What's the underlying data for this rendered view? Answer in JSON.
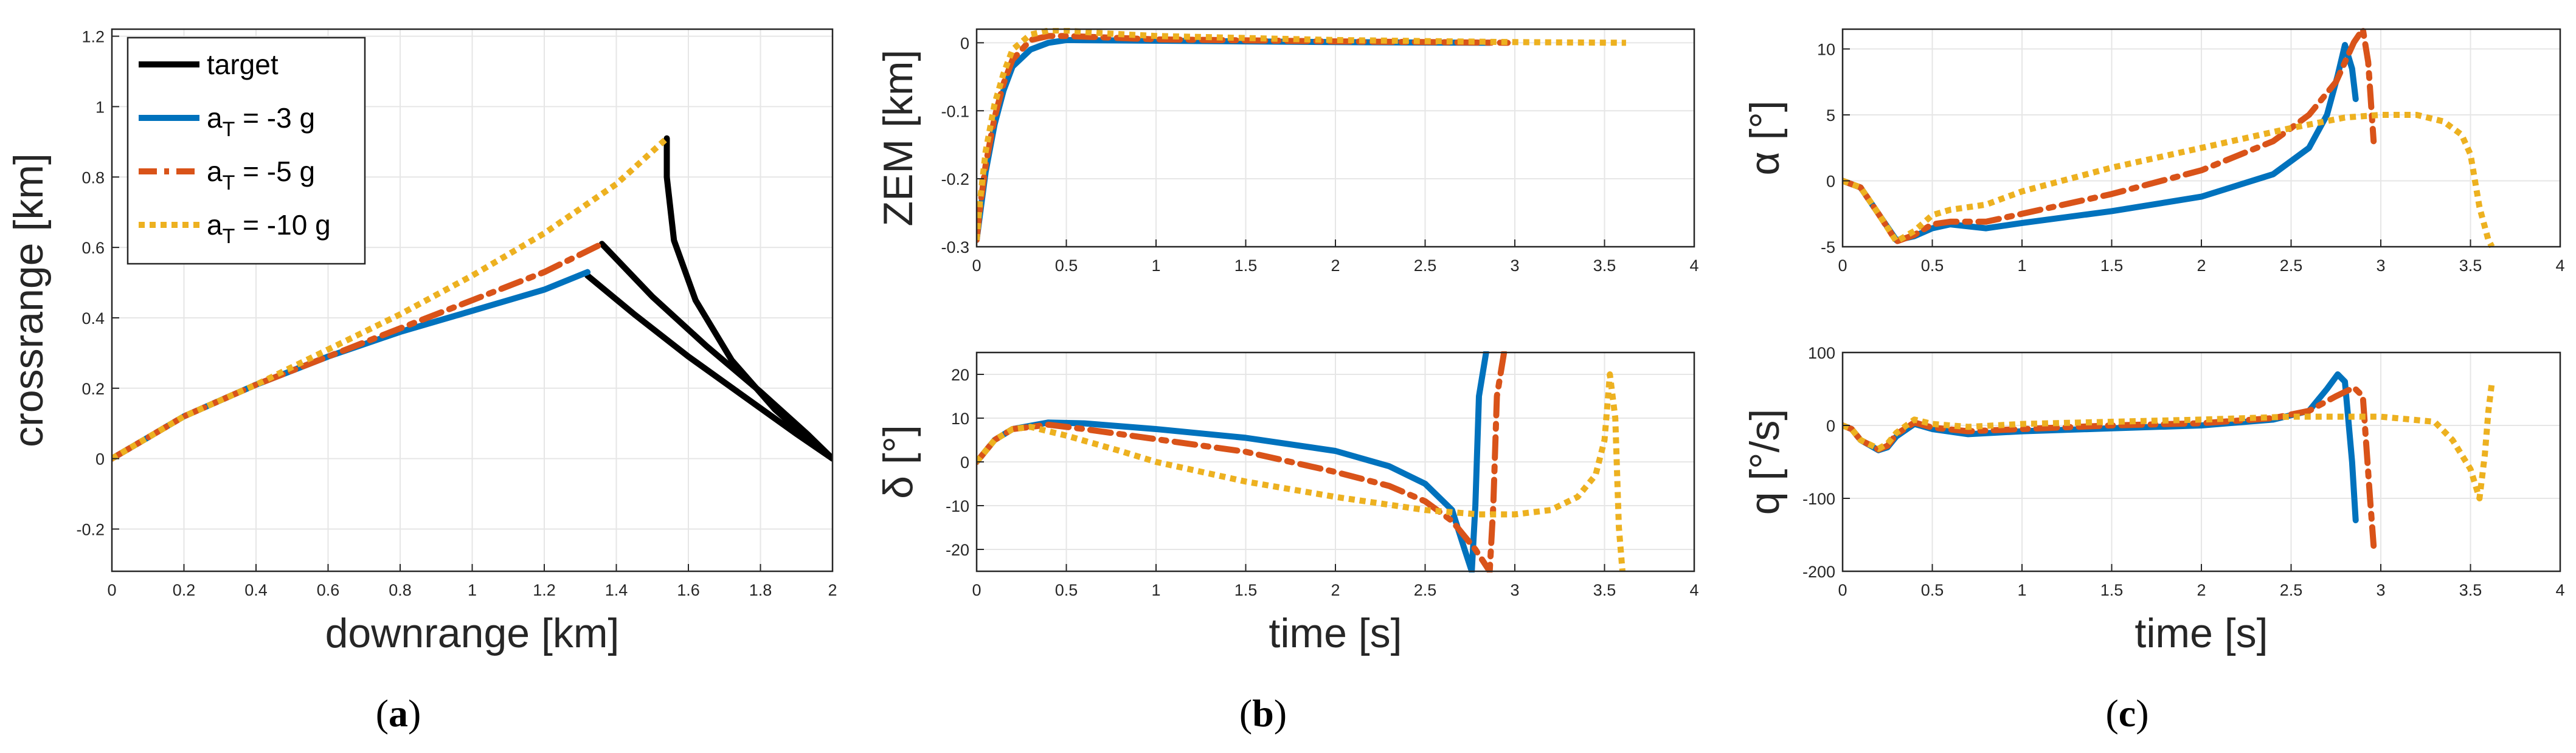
{
  "colors": {
    "target": "#000000",
    "a3": "#0072BD",
    "a5": "#D95319",
    "a10": "#EDB120",
    "grid": "#e6e6e6",
    "axis": "#262626"
  },
  "panel_labels": [
    "a",
    "b",
    "c"
  ],
  "legend": [
    {
      "series": "target",
      "main": "target",
      "sub": ""
    },
    {
      "series": "a3",
      "main": "a",
      "sub": "T",
      "rest": " = -3 g"
    },
    {
      "series": "a5",
      "main": "a",
      "sub": "T",
      "rest": " = -5 g"
    },
    {
      "series": "a10",
      "main": "a",
      "sub": "T",
      "rest": " = -10 g"
    }
  ],
  "chart_data": [
    {
      "id": "traj",
      "type": "line",
      "xlabel": "downrange [km]",
      "ylabel": "crossrange [km]",
      "xlim": [
        0,
        2
      ],
      "ylim": [
        -0.32,
        1.22
      ],
      "xticks": [
        0,
        0.2,
        0.4,
        0.6,
        0.8,
        1,
        1.2,
        1.4,
        1.6,
        1.8,
        2
      ],
      "yticks": [
        -0.2,
        0,
        0.2,
        0.4,
        0.6,
        0.8,
        1,
        1.2
      ],
      "series": [
        {
          "name": "target",
          "key": "target",
          "style": "solid",
          "x": [
            1.32,
            1.45,
            1.6,
            1.75,
            1.9,
            2.0
          ],
          "y": [
            0.52,
            0.41,
            0.29,
            0.18,
            0.07,
            0.0
          ]
        },
        {
          "name": "target",
          "key": "target",
          "style": "solid",
          "x": [
            1.36,
            1.5,
            1.65,
            1.8,
            1.93,
            2.0
          ],
          "y": [
            0.61,
            0.46,
            0.32,
            0.19,
            0.07,
            0.0
          ]
        },
        {
          "name": "target",
          "key": "target",
          "style": "solid",
          "x": [
            1.54,
            1.54,
            1.56,
            1.62,
            1.72,
            1.84,
            1.95,
            2.0
          ],
          "y": [
            0.91,
            0.8,
            0.62,
            0.45,
            0.28,
            0.14,
            0.04,
            0.0
          ]
        },
        {
          "name": "a_T = -3 g",
          "key": "a3",
          "style": "solid",
          "x": [
            0,
            0.1,
            0.2,
            0.4,
            0.6,
            0.8,
            1.0,
            1.2,
            1.32
          ],
          "y": [
            0,
            0.06,
            0.12,
            0.21,
            0.29,
            0.36,
            0.42,
            0.48,
            0.53
          ]
        },
        {
          "name": "a_T = -5 g",
          "key": "a5",
          "style": "dashdot",
          "x": [
            0,
            0.1,
            0.2,
            0.4,
            0.6,
            0.8,
            1.0,
            1.2,
            1.36
          ],
          "y": [
            0,
            0.06,
            0.12,
            0.21,
            0.29,
            0.37,
            0.45,
            0.53,
            0.61
          ]
        },
        {
          "name": "a_T = -10 g",
          "key": "a10",
          "style": "dotted",
          "x": [
            0,
            0.1,
            0.2,
            0.4,
            0.6,
            0.8,
            1.0,
            1.2,
            1.4,
            1.54
          ],
          "y": [
            0,
            0.06,
            0.12,
            0.21,
            0.31,
            0.41,
            0.52,
            0.64,
            0.78,
            0.91
          ]
        }
      ]
    },
    {
      "id": "zem",
      "type": "line",
      "xlabel": "",
      "ylabel": "ZEM [km]",
      "xlim": [
        0,
        4
      ],
      "ylim": [
        -0.3,
        0.02
      ],
      "xticks": [
        0,
        0.5,
        1,
        1.5,
        2,
        2.5,
        3,
        3.5,
        4
      ],
      "yticks": [
        -0.3,
        -0.2,
        -0.1,
        0
      ],
      "series": [
        {
          "name": "a_T = -3 g",
          "key": "a3",
          "style": "solid",
          "x": [
            0,
            0.02,
            0.05,
            0.1,
            0.15,
            0.2,
            0.3,
            0.4,
            0.5,
            1,
            2,
            2.86
          ],
          "y": [
            -0.29,
            -0.25,
            -0.19,
            -0.12,
            -0.07,
            -0.035,
            -0.01,
            0.0,
            0.004,
            0.003,
            0.001,
            0.0
          ]
        },
        {
          "name": "a_T = -5 g",
          "key": "a5",
          "style": "dashdot",
          "x": [
            0,
            0.02,
            0.05,
            0.1,
            0.15,
            0.2,
            0.3,
            0.4,
            0.5,
            1,
            2,
            2.96
          ],
          "y": [
            -0.29,
            -0.24,
            -0.18,
            -0.11,
            -0.06,
            -0.025,
            0.004,
            0.01,
            0.01,
            0.005,
            0.002,
            0.0
          ]
        },
        {
          "name": "a_T = -10 g",
          "key": "a10",
          "style": "dotted",
          "x": [
            0,
            0.02,
            0.05,
            0.1,
            0.15,
            0.2,
            0.3,
            0.4,
            0.5,
            0.7,
            1,
            2,
            3,
            3.62
          ],
          "y": [
            -0.29,
            -0.23,
            -0.16,
            -0.09,
            -0.045,
            -0.01,
            0.012,
            0.018,
            0.018,
            0.014,
            0.01,
            0.004,
            0.001,
            0.0
          ]
        }
      ]
    },
    {
      "id": "delta",
      "type": "line",
      "xlabel": "time [s]",
      "ylabel": "δ [°]",
      "xlim": [
        0,
        4
      ],
      "ylim": [
        -25,
        25
      ],
      "xticks": [
        0,
        0.5,
        1,
        1.5,
        2,
        2.5,
        3,
        3.5,
        4
      ],
      "yticks": [
        -20,
        -10,
        0,
        10,
        20
      ],
      "series": [
        {
          "name": "a_T = -3 g",
          "key": "a3",
          "style": "solid",
          "x": [
            0,
            0.1,
            0.2,
            0.4,
            0.6,
            1.0,
            1.5,
            2.0,
            2.3,
            2.5,
            2.65,
            2.72,
            2.76,
            2.78,
            2.8,
            2.84
          ],
          "y": [
            0,
            5,
            7.5,
            9,
            8.8,
            7.5,
            5.5,
            2.5,
            -1,
            -5,
            -11,
            -20,
            -25,
            -10,
            15,
            25
          ]
        },
        {
          "name": "a_T = -5 g",
          "key": "a5",
          "style": "dashdot",
          "x": [
            0,
            0.1,
            0.2,
            0.4,
            0.6,
            1.0,
            1.5,
            2.0,
            2.3,
            2.5,
            2.65,
            2.78,
            2.86,
            2.88,
            2.9,
            2.94
          ],
          "y": [
            0,
            5,
            7.5,
            8.5,
            7.5,
            5.2,
            2.3,
            -2.3,
            -5.5,
            -9,
            -13.5,
            -20,
            -25,
            -10,
            15,
            25
          ]
        },
        {
          "name": "a_T = -10 g",
          "key": "a10",
          "style": "dotted",
          "x": [
            0,
            0.1,
            0.2,
            0.3,
            0.5,
            0.8,
            1.0,
            1.5,
            2.0,
            2.5,
            2.8,
            3.0,
            3.2,
            3.35,
            3.45,
            3.5,
            3.53,
            3.56,
            3.58,
            3.6
          ],
          "y": [
            0,
            5,
            7.5,
            8,
            6,
            2.5,
            0,
            -4.5,
            -8,
            -11,
            -12,
            -12,
            -11,
            -8,
            -3,
            5,
            20,
            10,
            -15,
            -25
          ]
        }
      ]
    },
    {
      "id": "alpha",
      "type": "line",
      "xlabel": "",
      "ylabel": "α [°]",
      "xlim": [
        0,
        4
      ],
      "ylim": [
        -5,
        11.5
      ],
      "xticks": [
        0,
        0.5,
        1,
        1.5,
        2,
        2.5,
        3,
        3.5,
        4
      ],
      "yticks": [
        -5,
        0,
        5,
        10
      ],
      "series": [
        {
          "name": "a_T = -3 g",
          "key": "a3",
          "style": "solid",
          "x": [
            0,
            0.1,
            0.2,
            0.3,
            0.4,
            0.5,
            0.6,
            0.8,
            1.0,
            1.5,
            2.0,
            2.4,
            2.6,
            2.7,
            2.76,
            2.8,
            2.84,
            2.86
          ],
          "y": [
            0,
            -0.5,
            -2.5,
            -4.5,
            -4.2,
            -3.6,
            -3.3,
            -3.6,
            -3.2,
            -2.3,
            -1.2,
            0.5,
            2.5,
            5,
            8,
            10.3,
            8.5,
            6.2
          ]
        },
        {
          "name": "a_T = -5 g",
          "key": "a5",
          "style": "dashdot",
          "x": [
            0,
            0.1,
            0.2,
            0.3,
            0.4,
            0.5,
            0.6,
            0.8,
            1.0,
            1.5,
            2.0,
            2.4,
            2.6,
            2.75,
            2.85,
            2.9,
            2.93,
            2.96
          ],
          "y": [
            0,
            -0.5,
            -2.5,
            -4.6,
            -4.1,
            -3.3,
            -3.1,
            -3.1,
            -2.5,
            -1,
            0.8,
            3,
            5,
            7.5,
            10.5,
            11.5,
            9,
            3
          ]
        },
        {
          "name": "a_T = -10 g",
          "key": "a10",
          "style": "dotted",
          "x": [
            0,
            0.1,
            0.2,
            0.3,
            0.4,
            0.5,
            0.6,
            0.8,
            1.0,
            1.5,
            2.0,
            2.5,
            2.8,
            3.0,
            3.2,
            3.35,
            3.45,
            3.5,
            3.55,
            3.6,
            3.62
          ],
          "y": [
            0,
            -0.5,
            -2.5,
            -4.6,
            -3.8,
            -2.6,
            -2.2,
            -1.8,
            -0.8,
            1,
            2.5,
            4,
            4.8,
            5,
            5,
            4.5,
            3.5,
            2,
            -2,
            -4.5,
            -5
          ]
        }
      ]
    },
    {
      "id": "q",
      "type": "line",
      "xlabel": "time [s]",
      "ylabel": "q [°/s]",
      "xlim": [
        0,
        4
      ],
      "ylim": [
        -200,
        100
      ],
      "xticks": [
        0,
        0.5,
        1,
        1.5,
        2,
        2.5,
        3,
        3.5,
        4
      ],
      "yticks": [
        -200,
        -100,
        0,
        100
      ],
      "series": [
        {
          "name": "a_T = -3 g",
          "key": "a3",
          "style": "solid",
          "x": [
            0,
            0.05,
            0.1,
            0.2,
            0.25,
            0.3,
            0.4,
            0.5,
            0.7,
            1.0,
            1.5,
            2.0,
            2.4,
            2.6,
            2.7,
            2.76,
            2.8,
            2.84,
            2.86
          ],
          "y": [
            0,
            -5,
            -20,
            -34,
            -30,
            -15,
            2,
            -5,
            -12,
            -8,
            -4,
            0,
            8,
            20,
            50,
            70,
            60,
            -50,
            -130
          ]
        },
        {
          "name": "a_T = -5 g",
          "key": "a5",
          "style": "dashdot",
          "x": [
            0,
            0.05,
            0.1,
            0.2,
            0.25,
            0.3,
            0.4,
            0.5,
            0.7,
            1.0,
            1.5,
            2.0,
            2.4,
            2.6,
            2.75,
            2.85,
            2.9,
            2.94,
            2.96
          ],
          "y": [
            0,
            -5,
            -20,
            -33,
            -28,
            -12,
            4,
            -3,
            -8,
            -5,
            0,
            3,
            10,
            20,
            40,
            52,
            40,
            -100,
            -165
          ]
        },
        {
          "name": "a_T = -10 g",
          "key": "a10",
          "style": "dotted",
          "x": [
            0,
            0.05,
            0.1,
            0.2,
            0.25,
            0.3,
            0.4,
            0.5,
            0.7,
            1.0,
            1.5,
            2.0,
            2.5,
            3.0,
            3.3,
            3.4,
            3.5,
            3.55,
            3.58,
            3.6,
            3.62
          ],
          "y": [
            0,
            -5,
            -20,
            -32,
            -25,
            -10,
            8,
            2,
            -2,
            2,
            5,
            8,
            12,
            12,
            5,
            -20,
            -60,
            -100,
            -40,
            20,
            60
          ]
        }
      ]
    }
  ]
}
